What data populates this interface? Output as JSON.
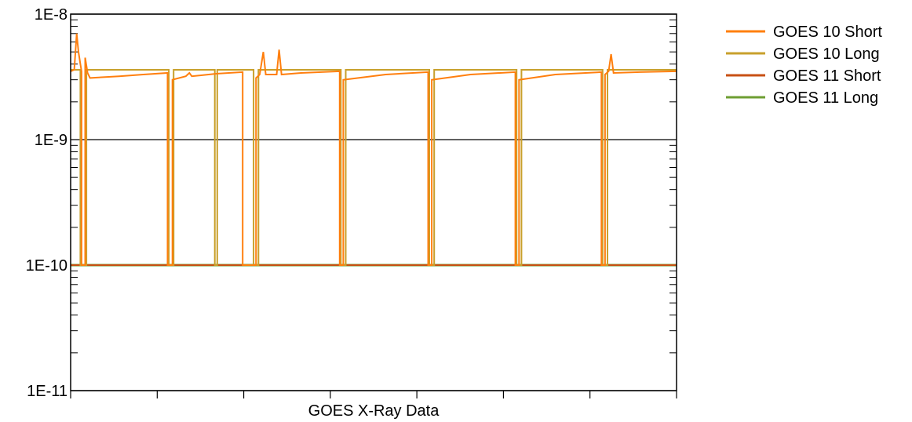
{
  "chart_data": {
    "type": "line",
    "title": "",
    "xlabel": "GOES X-Ray Data",
    "ylabel": "",
    "y_scale": "log",
    "ylim": [
      1e-11,
      1e-08
    ],
    "xlim": [
      0,
      1
    ],
    "y_ticks": [
      {
        "value": 1e-08,
        "label": "1E-8"
      },
      {
        "value": 1e-09,
        "label": "1E-9"
      },
      {
        "value": 1e-10,
        "label": "1E-10"
      },
      {
        "value": 1e-11,
        "label": "1E-11"
      }
    ],
    "x_tick_positions": [
      0,
      0.1429,
      0.2857,
      0.4286,
      0.5714,
      0.7143,
      0.8571,
      1
    ],
    "grid": "horizontal major lines",
    "legend_position": "top-right",
    "series": [
      {
        "name": "GOES 10 Short",
        "color": "#ff7f0e",
        "points": [
          [
            0,
            3.5e-09
          ],
          [
            0.006,
            3.6e-09
          ],
          [
            0.01,
            7e-09
          ],
          [
            0.013,
            5e-09
          ],
          [
            0.016,
            4e-09
          ],
          [
            0.018,
            3.5e-09
          ],
          [
            0.018,
            1e-10
          ],
          [
            0.024,
            1e-10
          ],
          [
            0.024,
            4.5e-09
          ],
          [
            0.028,
            3.4e-09
          ],
          [
            0.032,
            3.1e-09
          ],
          [
            0.08,
            3.2e-09
          ],
          [
            0.12,
            3.3e-09
          ],
          [
            0.16,
            3.4e-09
          ],
          [
            0.16,
            1e-10
          ],
          [
            0.168,
            1e-10
          ],
          [
            0.168,
            3e-09
          ],
          [
            0.19,
            3.2e-09
          ],
          [
            0.196,
            3.4e-09
          ],
          [
            0.2,
            3.2e-09
          ],
          [
            0.24,
            3.35e-09
          ],
          [
            0.284,
            3.45e-09
          ],
          [
            0.284,
            1e-10
          ],
          [
            0.306,
            1e-10
          ],
          [
            0.306,
            3.1e-09
          ],
          [
            0.312,
            3.3e-09
          ],
          [
            0.318,
            5e-09
          ],
          [
            0.322,
            3.3e-09
          ],
          [
            0.34,
            3.3e-09
          ],
          [
            0.344,
            5.2e-09
          ],
          [
            0.348,
            3.3e-09
          ],
          [
            0.38,
            3.4e-09
          ],
          [
            0.444,
            3.5e-09
          ],
          [
            0.444,
            1e-10
          ],
          [
            0.45,
            1e-10
          ],
          [
            0.45,
            3e-09
          ],
          [
            0.52,
            3.3e-09
          ],
          [
            0.59,
            3.45e-09
          ],
          [
            0.59,
            1e-10
          ],
          [
            0.596,
            1e-10
          ],
          [
            0.596,
            3e-09
          ],
          [
            0.66,
            3.3e-09
          ],
          [
            0.734,
            3.45e-09
          ],
          [
            0.734,
            1e-10
          ],
          [
            0.74,
            1e-10
          ],
          [
            0.74,
            3e-09
          ],
          [
            0.8,
            3.3e-09
          ],
          [
            0.876,
            3.45e-09
          ],
          [
            0.876,
            1e-10
          ],
          [
            0.882,
            1e-10
          ],
          [
            0.882,
            3.3e-09
          ],
          [
            0.888,
            3.5e-09
          ],
          [
            0.892,
            4.8e-09
          ],
          [
            0.896,
            3.4e-09
          ],
          [
            0.94,
            3.45e-09
          ],
          [
            1,
            3.5e-09
          ]
        ]
      },
      {
        "name": "GOES 10 Long",
        "color": "#c8a02c",
        "points": [
          [
            0,
            3.6e-09
          ],
          [
            0.016,
            3.6e-09
          ],
          [
            0.016,
            1e-10
          ],
          [
            0.026,
            1e-10
          ],
          [
            0.026,
            3.6e-09
          ],
          [
            0.162,
            3.6e-09
          ],
          [
            0.162,
            1e-10
          ],
          [
            0.17,
            1e-10
          ],
          [
            0.17,
            3.6e-09
          ],
          [
            0.238,
            3.6e-09
          ],
          [
            0.238,
            1e-10
          ],
          [
            0.242,
            1e-10
          ],
          [
            0.242,
            3.6e-09
          ],
          [
            0.302,
            3.6e-09
          ],
          [
            0.302,
            1e-10
          ],
          [
            0.31,
            1e-10
          ],
          [
            0.31,
            3.6e-09
          ],
          [
            0.446,
            3.6e-09
          ],
          [
            0.446,
            1e-10
          ],
          [
            0.454,
            1e-10
          ],
          [
            0.454,
            3.6e-09
          ],
          [
            0.592,
            3.6e-09
          ],
          [
            0.592,
            1e-10
          ],
          [
            0.6,
            1e-10
          ],
          [
            0.6,
            3.6e-09
          ],
          [
            0.736,
            3.6e-09
          ],
          [
            0.736,
            1e-10
          ],
          [
            0.744,
            1e-10
          ],
          [
            0.744,
            3.6e-09
          ],
          [
            0.878,
            3.6e-09
          ],
          [
            0.878,
            1e-10
          ],
          [
            0.886,
            1e-10
          ],
          [
            0.886,
            3.6e-09
          ],
          [
            1,
            3.6e-09
          ]
        ]
      },
      {
        "name": "GOES 11 Short",
        "color": "#c85014",
        "points": [
          [
            0,
            1e-10
          ],
          [
            1,
            1e-10
          ]
        ]
      },
      {
        "name": "GOES 11 Long",
        "color": "#6e9e32",
        "points": [
          [
            0,
            1e-10
          ],
          [
            1,
            1e-10
          ]
        ]
      }
    ]
  }
}
